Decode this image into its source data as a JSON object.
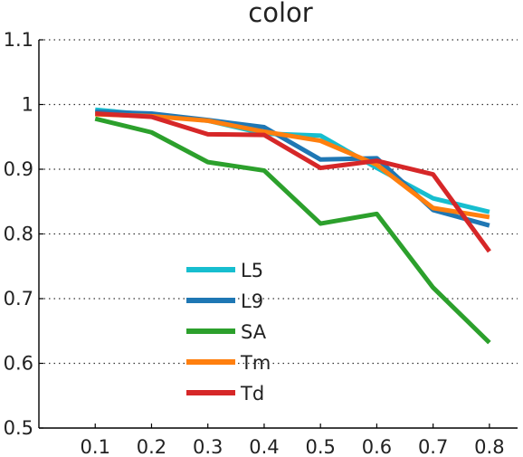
{
  "chart_data": {
    "type": "line",
    "title": "color",
    "xlabel": "",
    "ylabel": "",
    "x": [
      0.1,
      0.2,
      0.3,
      0.4,
      0.5,
      0.6,
      0.7,
      0.8
    ],
    "x_tick_labels": [
      "0.1",
      "0.2",
      "0.3",
      "0.4",
      "0.5",
      "0.6",
      "0.7",
      "0.8"
    ],
    "y_tick_labels": [
      "0.5",
      "0.6",
      "0.7",
      "0.8",
      "0.9",
      "1",
      "1.1"
    ],
    "y_ticks": [
      0.5,
      0.6,
      0.7,
      0.8,
      0.9,
      1.0,
      1.1
    ],
    "xlim": [
      0.0,
      0.85
    ],
    "ylim": [
      0.5,
      1.1
    ],
    "grid": "horizontal dotted",
    "legend_placement": "lower-center",
    "series": [
      {
        "name": "L5",
        "color": "#17becf",
        "values": [
          0.992,
          0.984,
          0.975,
          0.955,
          0.952,
          0.902,
          0.855,
          0.834
        ]
      },
      {
        "name": "L9",
        "color": "#1f77b4",
        "values": [
          0.989,
          0.986,
          0.976,
          0.965,
          0.915,
          0.917,
          0.837,
          0.813
        ]
      },
      {
        "name": "SA",
        "color": "#2ca02c",
        "values": [
          0.978,
          0.957,
          0.911,
          0.898,
          0.816,
          0.831,
          0.717,
          0.632
        ]
      },
      {
        "name": "Tm",
        "color": "#ff7f0e",
        "values": [
          0.985,
          0.982,
          0.975,
          0.958,
          0.944,
          0.907,
          0.84,
          0.826
        ]
      },
      {
        "name": "Td",
        "color": "#d62728",
        "values": [
          0.986,
          0.981,
          0.954,
          0.953,
          0.902,
          0.913,
          0.892,
          0.773
        ]
      }
    ]
  }
}
